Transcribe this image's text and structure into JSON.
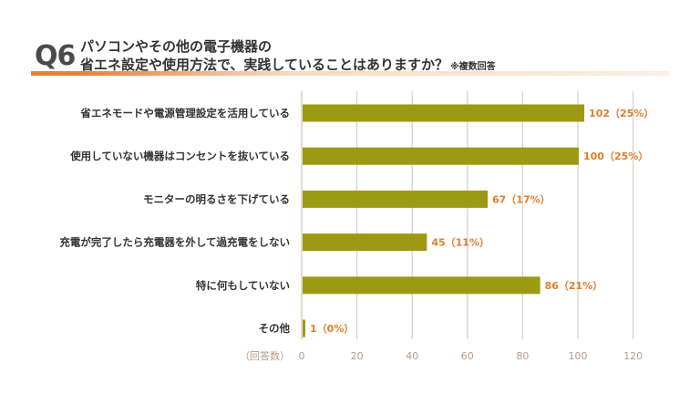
{
  "question": {
    "number": "Q6",
    "line1": "パソコンやその他の電子機器の",
    "line2": "省エネ設定や使用方法で、実践していることはありますか？",
    "note": "※複数回答"
  },
  "colors": {
    "bar": "#9c9a12",
    "value_label": "#e07d2c",
    "grid": "#d9cfc4",
    "accent_orange": "#e8823a",
    "tick": "#b89a85"
  },
  "chart_data": {
    "type": "bar",
    "orientation": "horizontal",
    "categories": [
      "省エネモードや電源管理設定を活用している",
      "使用していない機器はコンセントを抜いている",
      "モニターの明るさを下げている",
      "充電が完了したら充電器を外して過充電をしない",
      "特に何もしていない",
      "その他"
    ],
    "values": [
      102,
      100,
      67,
      45,
      86,
      1
    ],
    "value_labels": [
      "102（25%）",
      "100（25%）",
      "67（17%）",
      "45（11%）",
      "86（21%）",
      "1（0%）"
    ],
    "xlabel": "（回答数）",
    "xlim": [
      0,
      120
    ],
    "xticks": [
      "0",
      "20",
      "40",
      "60",
      "80",
      "100",
      "120"
    ],
    "grid": true
  }
}
